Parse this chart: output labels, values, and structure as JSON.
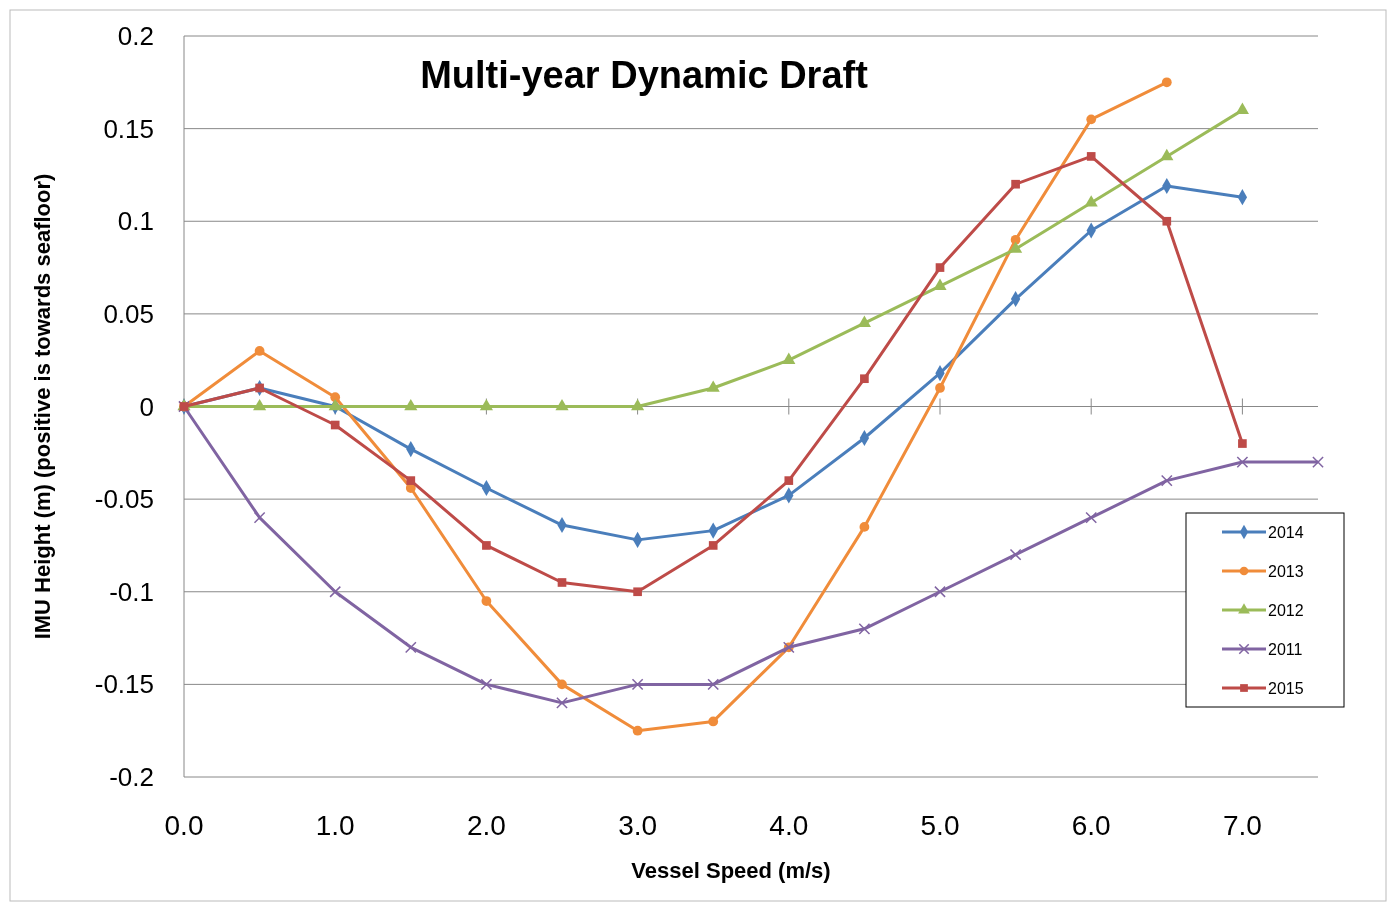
{
  "chart_data": {
    "type": "line",
    "title": "Multi-year Dynamic Draft",
    "xlabel": "Vessel Speed (m/s)",
    "ylabel": "IMU Height (m) (positive is towards seafloor)",
    "xlim": [
      0,
      7.5
    ],
    "xticks": [
      {
        "value": 0,
        "label": "0.0"
      },
      {
        "value": 1,
        "label": "1.0"
      },
      {
        "value": 2,
        "label": "2.0"
      },
      {
        "value": 3,
        "label": "3.0"
      },
      {
        "value": 4,
        "label": "4.0"
      },
      {
        "value": 5,
        "label": "5.0"
      },
      {
        "value": 6,
        "label": "6.0"
      },
      {
        "value": 7,
        "label": "7.0"
      }
    ],
    "ylim": [
      -0.2,
      0.2
    ],
    "yticks": [
      -0.2,
      -0.15,
      -0.1,
      -0.05,
      0,
      0.05,
      0.1,
      0.15,
      0.2
    ],
    "grid": "y",
    "legend": "right",
    "line_style": "solid",
    "series": [
      {
        "name": "2014",
        "color": "#4a7ebb",
        "marker": "diamond",
        "x": [
          0,
          0.5,
          1,
          1.5,
          2,
          2.5,
          3,
          3.5,
          4,
          4.5,
          5,
          5.5,
          6,
          6.5,
          7
        ],
        "values": [
          0,
          0.01,
          0,
          -0.023,
          -0.044,
          -0.064,
          -0.072,
          -0.067,
          -0.048,
          -0.017,
          0.018,
          0.058,
          0.095,
          0.119,
          0.113
        ]
      },
      {
        "name": "2013",
        "color": "#f08c3a",
        "marker": "circle",
        "x": [
          0,
          0.5,
          1,
          1.5,
          2,
          2.5,
          3,
          3.5,
          4,
          4.5,
          5,
          5.5,
          6,
          6.5
        ],
        "values": [
          0,
          0.03,
          0.005,
          -0.044,
          -0.105,
          -0.15,
          -0.175,
          -0.17,
          -0.13,
          -0.065,
          0.01,
          0.09,
          0.155,
          0.175
        ]
      },
      {
        "name": "2012",
        "color": "#9bbb59",
        "marker": "triangle",
        "x": [
          0,
          0.5,
          1,
          1.5,
          2,
          2.5,
          3,
          3.5,
          4,
          4.5,
          5,
          5.5,
          6,
          6.5,
          7
        ],
        "values": [
          0,
          0,
          0,
          0,
          0,
          0,
          0,
          0.01,
          0.025,
          0.045,
          0.065,
          0.085,
          0.11,
          0.135,
          0.16
        ]
      },
      {
        "name": "2011",
        "color": "#8064a2",
        "marker": "cross",
        "x": [
          0,
          0.5,
          1,
          1.5,
          2,
          2.5,
          3,
          3.5,
          4,
          4.5,
          5,
          5.5,
          6,
          6.5,
          7,
          7.5
        ],
        "values": [
          0,
          -0.06,
          -0.1,
          -0.13,
          -0.15,
          -0.16,
          -0.15,
          -0.15,
          -0.13,
          -0.12,
          -0.1,
          -0.08,
          -0.06,
          -0.04,
          -0.03,
          -0.03
        ]
      },
      {
        "name": "2015",
        "color": "#be4b48",
        "marker": "square",
        "x": [
          0,
          0.5,
          1,
          1.5,
          2,
          2.5,
          3,
          3.5,
          4,
          4.5,
          5,
          5.5,
          6,
          6.5,
          7
        ],
        "values": [
          0,
          0.01,
          -0.01,
          -0.04,
          -0.075,
          -0.095,
          -0.1,
          -0.075,
          -0.04,
          0.015,
          0.075,
          0.12,
          0.135,
          0.1,
          -0.02
        ]
      }
    ]
  }
}
